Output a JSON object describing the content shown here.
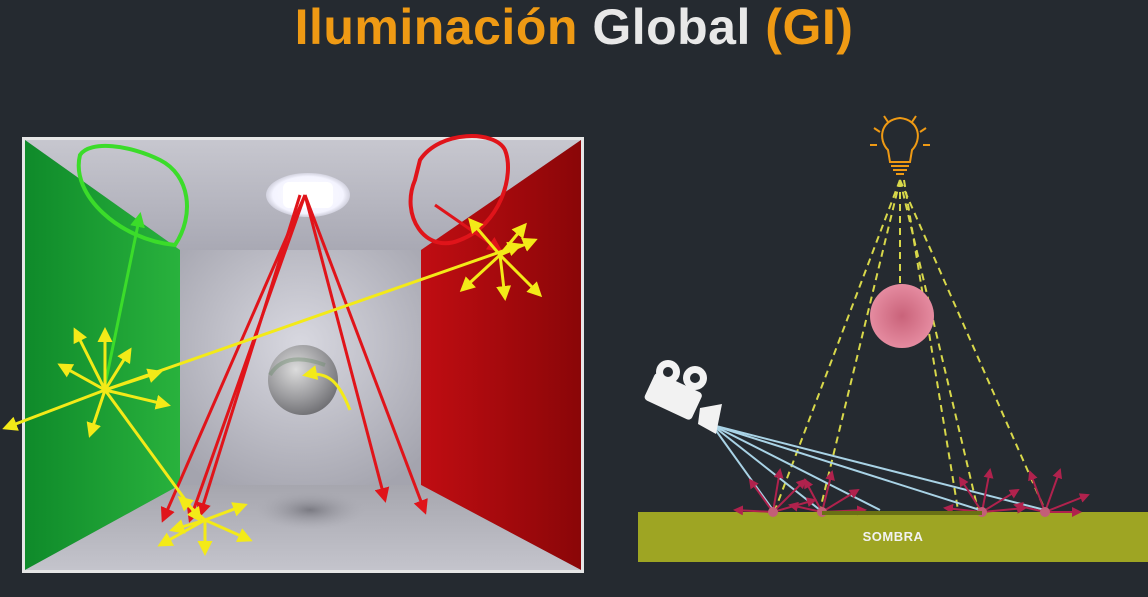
{
  "title": {
    "part1": "Iluminación",
    "part2": "Global",
    "part3": "(GI)"
  },
  "diagram": {
    "floor_label": "SOMBRA"
  },
  "colors": {
    "background": "#252a30",
    "title_accent": "#ef9a14",
    "title_text": "#e8e8e8",
    "floor": "#9ea523",
    "light_dash": "#d8d84a",
    "camera_ray": "#a9d3e6",
    "bounce_arrow": "#b0224d",
    "sphere": "#e07b94"
  },
  "icons": [
    "lightbulb-icon",
    "movie-camera-icon"
  ]
}
